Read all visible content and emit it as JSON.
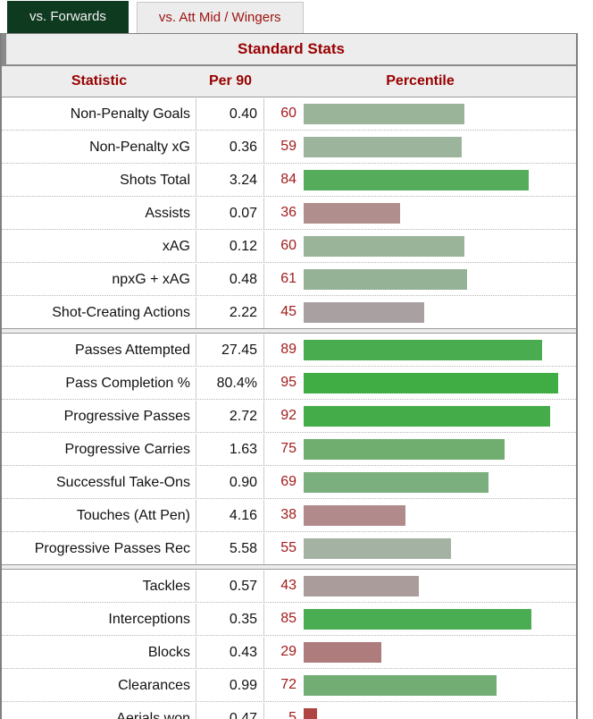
{
  "tabs": [
    {
      "label": "vs. Forwards",
      "active": true
    },
    {
      "label": "vs. Att Mid / Wingers",
      "active": false
    }
  ],
  "colors": {
    "active_tab_bg": "#0e3a20",
    "active_tab_text": "#f2f2f2",
    "inactive_tab_bg": "#ececec",
    "heading_red": "#990000",
    "percentile_number_red": "#a31c1c",
    "table_border_gray": "#7f7f7f"
  },
  "table": {
    "caption": "Standard Stats",
    "columns": [
      "Statistic",
      "Per 90",
      "Percentile"
    ],
    "groups": [
      {
        "rows": [
          {
            "stat": "Non-Penalty Goals",
            "per90": "0.40",
            "percentile": 60,
            "bar_color": "#9ab49a"
          },
          {
            "stat": "Non-Penalty xG",
            "per90": "0.36",
            "percentile": 59,
            "bar_color": "#9cb49c"
          },
          {
            "stat": "Shots Total",
            "per90": "3.24",
            "percentile": 84,
            "bar_color": "#55ac5a"
          },
          {
            "stat": "Assists",
            "per90": "0.07",
            "percentile": 36,
            "bar_color": "#b18e8e"
          },
          {
            "stat": "xAG",
            "per90": "0.12",
            "percentile": 60,
            "bar_color": "#9ab49a"
          },
          {
            "stat": "npxG + xAG",
            "per90": "0.48",
            "percentile": 61,
            "bar_color": "#96b296"
          },
          {
            "stat": "Shot-Creating Actions",
            "per90": "2.22",
            "percentile": 45,
            "bar_color": "#a9a1a1"
          }
        ]
      },
      {
        "rows": [
          {
            "stat": "Passes Attempted",
            "per90": "27.45",
            "percentile": 89,
            "bar_color": "#49ac4e"
          },
          {
            "stat": "Pass Completion %",
            "per90": "80.4%",
            "percentile": 95,
            "bar_color": "#3fad44"
          },
          {
            "stat": "Progressive Passes",
            "per90": "2.72",
            "percentile": 92,
            "bar_color": "#44ac49"
          },
          {
            "stat": "Progressive Carries",
            "per90": "1.63",
            "percentile": 75,
            "bar_color": "#6fae6f"
          },
          {
            "stat": "Successful Take-Ons",
            "per90": "0.90",
            "percentile": 69,
            "bar_color": "#7bb07e"
          },
          {
            "stat": "Touches (Att Pen)",
            "per90": "4.16",
            "percentile": 38,
            "bar_color": "#b18b8b"
          },
          {
            "stat": "Progressive Passes Rec",
            "per90": "5.58",
            "percentile": 55,
            "bar_color": "#a3b2a3"
          }
        ]
      },
      {
        "rows": [
          {
            "stat": "Tackles",
            "per90": "0.57",
            "percentile": 43,
            "bar_color": "#ab9c9c"
          },
          {
            "stat": "Interceptions",
            "per90": "0.35",
            "percentile": 85,
            "bar_color": "#4bad51"
          },
          {
            "stat": "Blocks",
            "per90": "0.43",
            "percentile": 29,
            "bar_color": "#ae7c7c"
          },
          {
            "stat": "Clearances",
            "per90": "0.99",
            "percentile": 72,
            "bar_color": "#72ae74"
          },
          {
            "stat": "Aerials won",
            "per90": "0.47",
            "percentile": 5,
            "bar_color": "#b04343"
          }
        ]
      }
    ]
  }
}
